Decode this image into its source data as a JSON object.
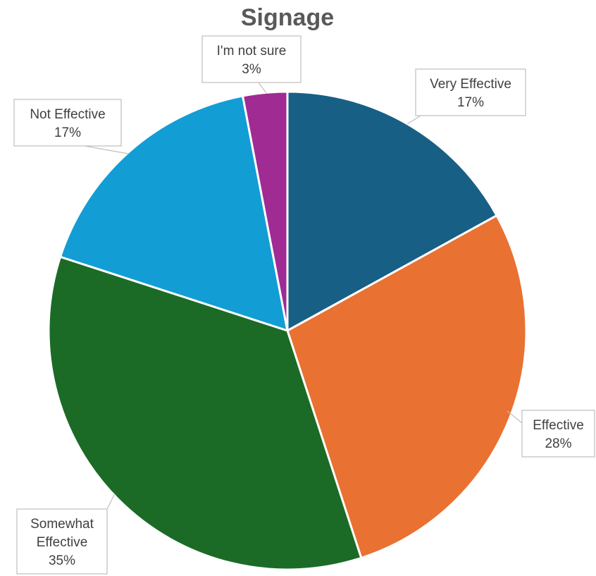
{
  "chart_data": {
    "type": "pie",
    "title": "Signage",
    "categories": [
      "Very Effective",
      "Effective",
      "Somewhat Effective",
      "Not Effective",
      "I'm not sure"
    ],
    "values": [
      17,
      28,
      35,
      17,
      3
    ],
    "value_labels": [
      "17%",
      "28%",
      "35%",
      "17%",
      "3%"
    ],
    "colors": [
      "#175F85",
      "#E97132",
      "#1B6B26",
      "#139DD5",
      "#A02B93"
    ],
    "label_lines": [
      [
        "Very Effective"
      ],
      [
        "Effective"
      ],
      [
        "Somewhat",
        "Effective"
      ],
      [
        "Not Effective"
      ],
      [
        "I'm not sure"
      ]
    ],
    "legend": "none"
  }
}
